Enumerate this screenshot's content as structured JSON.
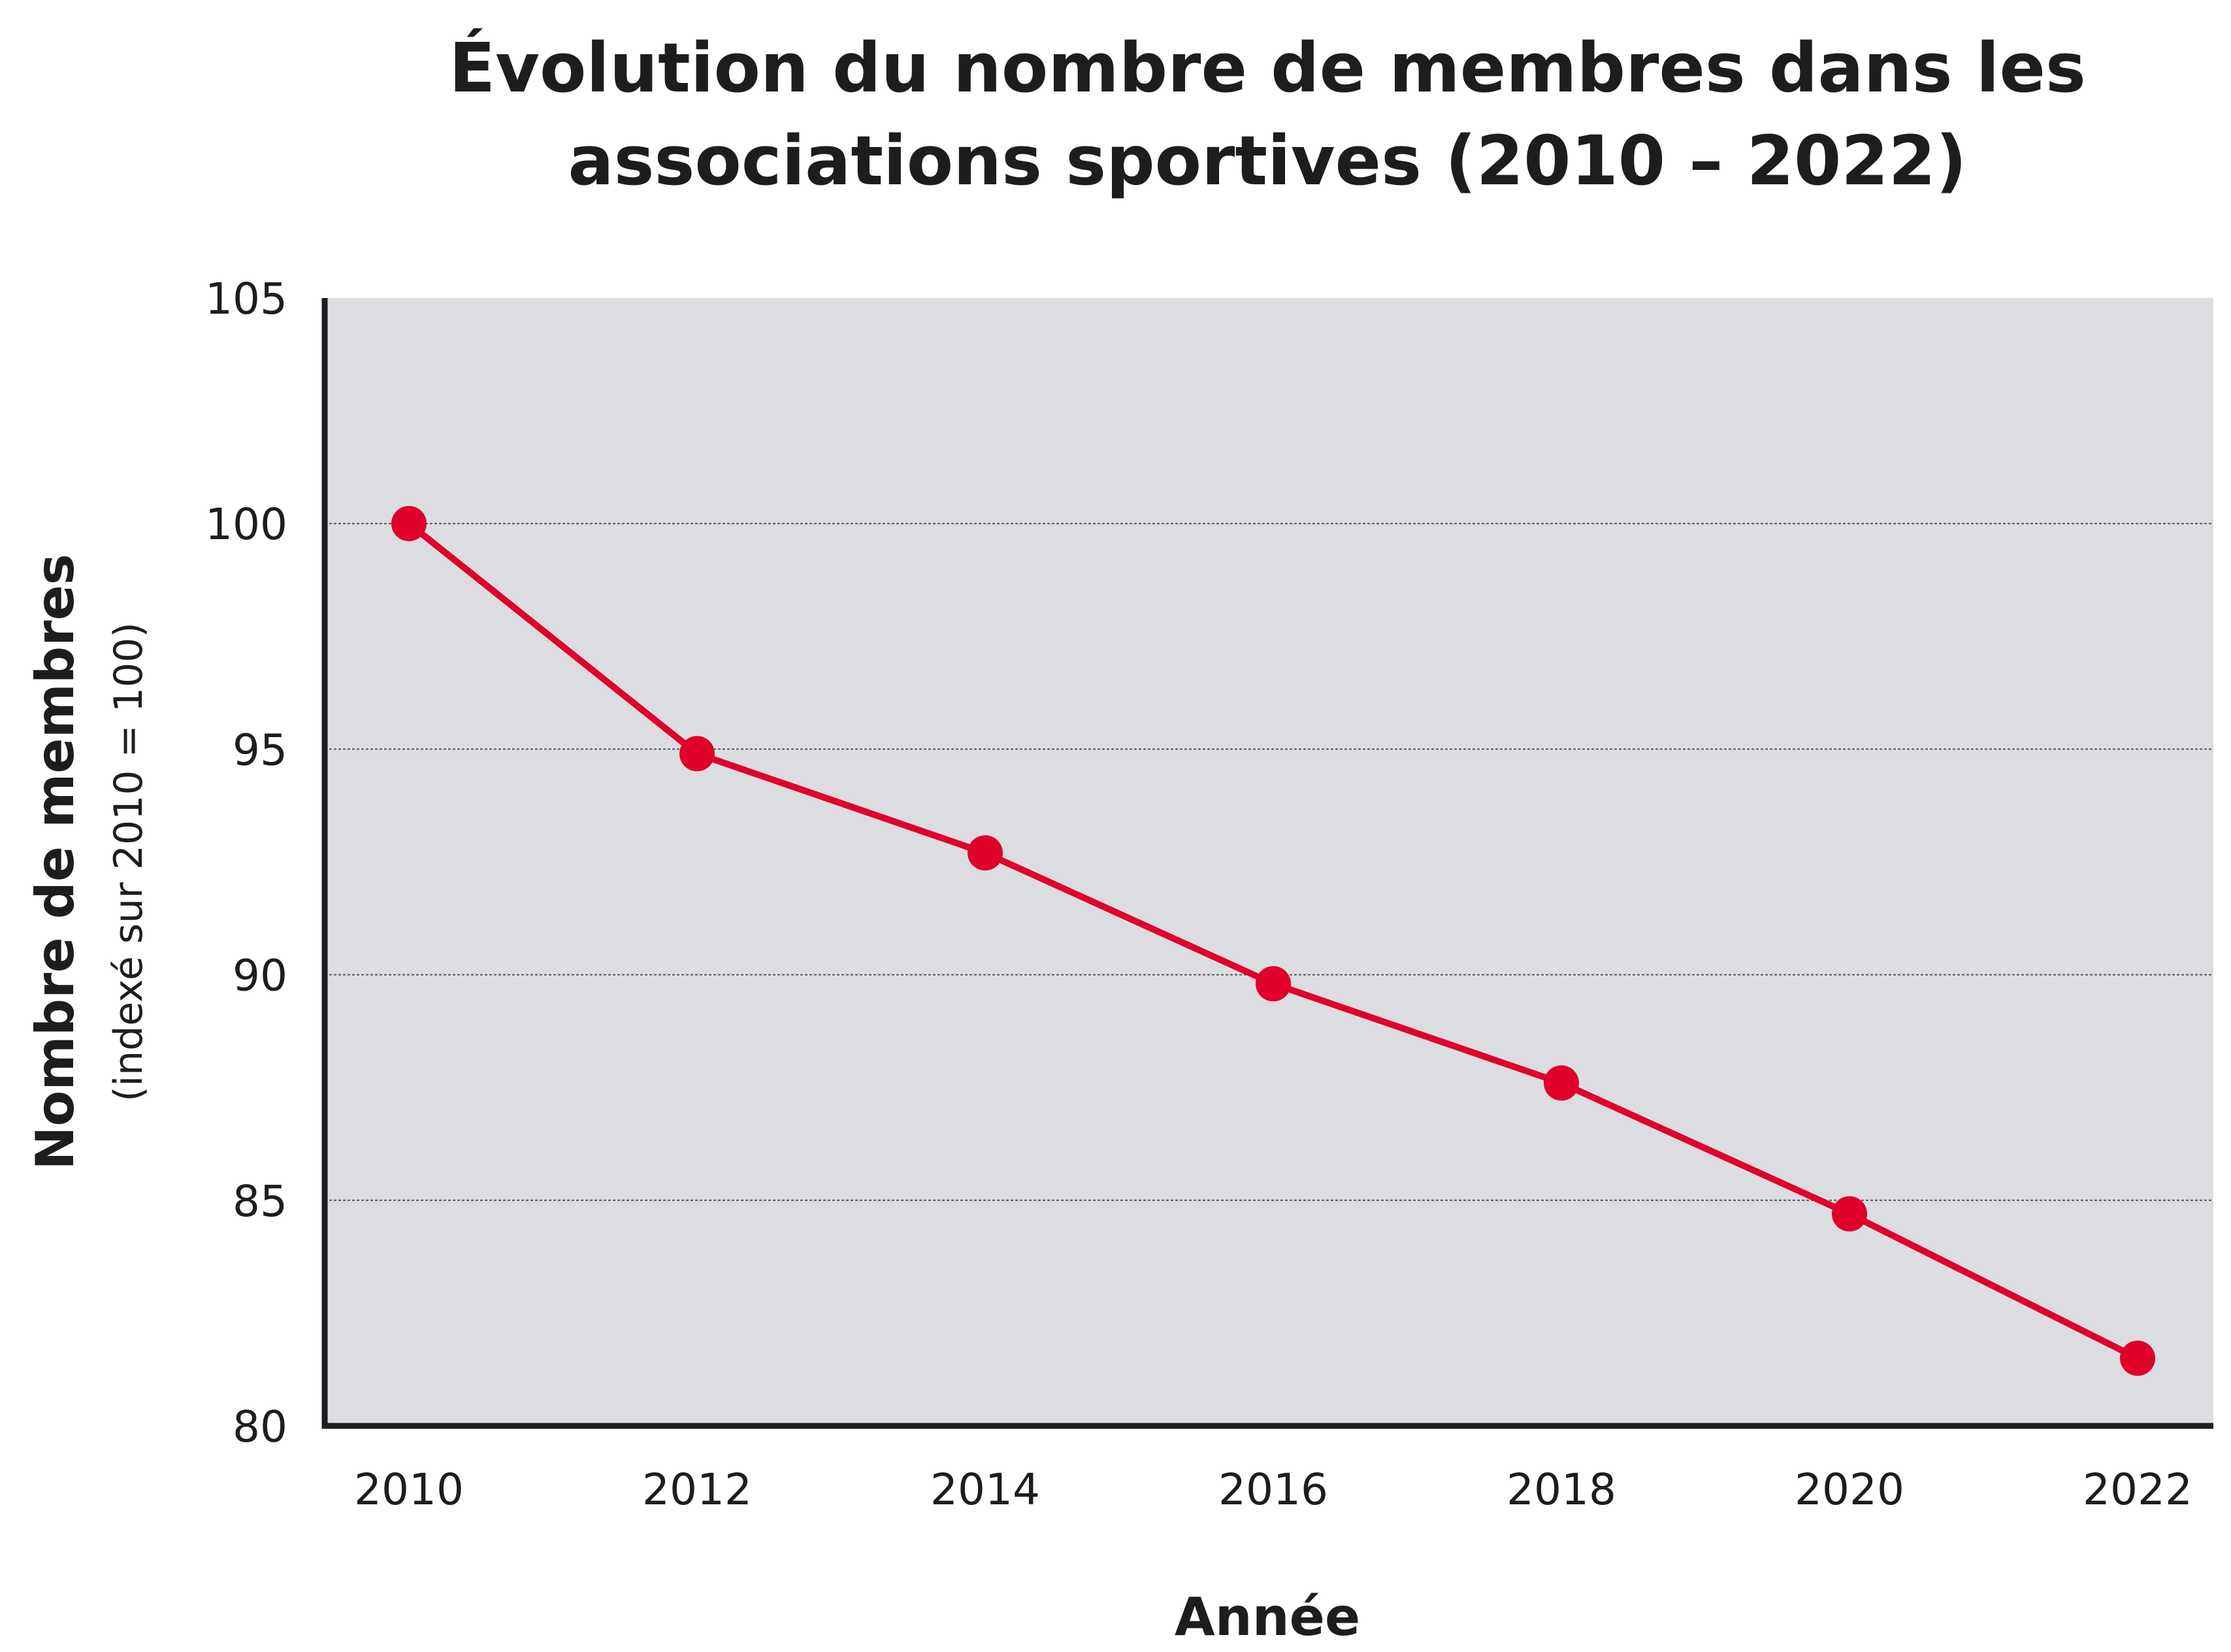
{
  "chart_data": {
    "type": "line",
    "title_lines": [
      "Évolution du nombre de membres dans les",
      "associations sportives (2010 – 2022)"
    ],
    "xlabel": "Année",
    "ylabel": "Nombre de membres",
    "ylabel_sub": "(indexé sur 2010 = 100)",
    "categories": [
      "2010",
      "2012",
      "2014",
      "2016",
      "2018",
      "2020",
      "2022"
    ],
    "series": [
      {
        "values": [
          100,
          94.9,
          92.7,
          89.8,
          87.6,
          84.7,
          81.5
        ]
      }
    ],
    "y_ticks": [
      "105",
      "100",
      "95",
      "90",
      "85",
      "80"
    ],
    "ylim": [
      80,
      105
    ],
    "grid": true,
    "legend": "none",
    "colors": {
      "line": "#e0002a",
      "plot_background": "#dcdde1",
      "axis": "#1d1d1f",
      "grid": "#555555"
    }
  }
}
